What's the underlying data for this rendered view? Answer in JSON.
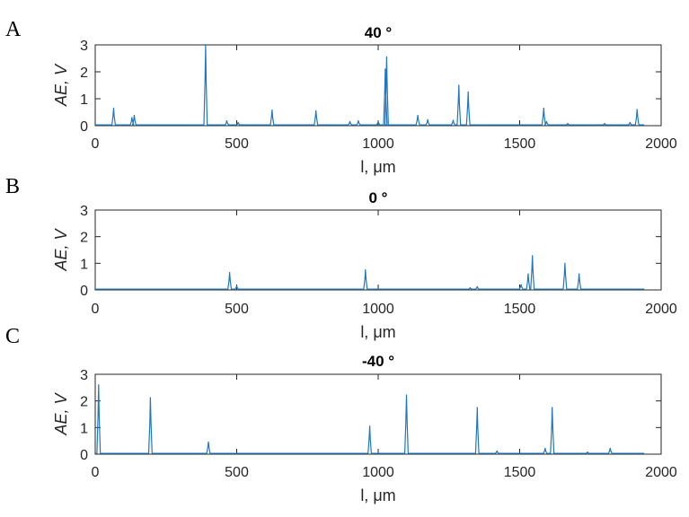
{
  "chart_data": [
    {
      "type": "line",
      "panel": "A",
      "title": "40 °",
      "xlabel": "l, μm",
      "ylabel": "AE, V",
      "xlim": [
        0,
        2000
      ],
      "ylim": [
        0,
        3
      ],
      "xticks": [
        0,
        500,
        1000,
        1500,
        2000
      ],
      "yticks": [
        0,
        1,
        2,
        3
      ],
      "baseline": 0.03,
      "x_end": 1940,
      "color": "#1f77c0",
      "peaks": [
        {
          "x": 65,
          "y": 0.65
        },
        {
          "x": 130,
          "y": 0.3
        },
        {
          "x": 138,
          "y": 0.38
        },
        {
          "x": 390,
          "y": 2.98
        },
        {
          "x": 465,
          "y": 0.18
        },
        {
          "x": 505,
          "y": 0.12
        },
        {
          "x": 625,
          "y": 0.58
        },
        {
          "x": 780,
          "y": 0.55
        },
        {
          "x": 900,
          "y": 0.15
        },
        {
          "x": 930,
          "y": 0.18
        },
        {
          "x": 1000,
          "y": 0.15
        },
        {
          "x": 1025,
          "y": 2.1
        },
        {
          "x": 1030,
          "y": 2.55
        },
        {
          "x": 1140,
          "y": 0.38
        },
        {
          "x": 1175,
          "y": 0.22
        },
        {
          "x": 1265,
          "y": 0.2
        },
        {
          "x": 1285,
          "y": 1.5
        },
        {
          "x": 1318,
          "y": 1.25
        },
        {
          "x": 1585,
          "y": 0.65
        },
        {
          "x": 1595,
          "y": 0.15
        },
        {
          "x": 1670,
          "y": 0.08
        },
        {
          "x": 1800,
          "y": 0.08
        },
        {
          "x": 1890,
          "y": 0.12
        },
        {
          "x": 1915,
          "y": 0.6
        }
      ]
    },
    {
      "type": "line",
      "panel": "B",
      "title": "0 °",
      "xlabel": "l, μm",
      "ylabel": "AE, V",
      "xlim": [
        0,
        2000
      ],
      "ylim": [
        0,
        3
      ],
      "xticks": [
        0,
        500,
        1000,
        1500,
        2000
      ],
      "yticks": [
        0,
        1,
        2,
        3
      ],
      "baseline": 0.03,
      "x_end": 1940,
      "color": "#1f77c0",
      "peaks": [
        {
          "x": 475,
          "y": 0.65
        },
        {
          "x": 500,
          "y": 0.15
        },
        {
          "x": 955,
          "y": 0.75
        },
        {
          "x": 1325,
          "y": 0.08
        },
        {
          "x": 1350,
          "y": 0.12
        },
        {
          "x": 1505,
          "y": 0.2
        },
        {
          "x": 1530,
          "y": 0.6
        },
        {
          "x": 1545,
          "y": 1.28
        },
        {
          "x": 1660,
          "y": 1.0
        },
        {
          "x": 1710,
          "y": 0.6
        }
      ]
    },
    {
      "type": "line",
      "panel": "C",
      "title": "-40 °",
      "xlabel": "l, μm",
      "ylabel": "AE, V",
      "xlim": [
        0,
        2000
      ],
      "ylim": [
        0,
        3
      ],
      "xticks": [
        0,
        500,
        1000,
        1500,
        2000
      ],
      "yticks": [
        0,
        1,
        2,
        3
      ],
      "baseline": 0.03,
      "x_end": 1940,
      "color": "#1f77c0",
      "peaks": [
        {
          "x": 12,
          "y": 2.6
        },
        {
          "x": 195,
          "y": 2.12
        },
        {
          "x": 400,
          "y": 0.45
        },
        {
          "x": 970,
          "y": 1.05
        },
        {
          "x": 1100,
          "y": 2.22
        },
        {
          "x": 1350,
          "y": 1.75
        },
        {
          "x": 1420,
          "y": 0.12
        },
        {
          "x": 1590,
          "y": 0.22
        },
        {
          "x": 1615,
          "y": 1.75
        },
        {
          "x": 1740,
          "y": 0.08
        },
        {
          "x": 1820,
          "y": 0.22
        }
      ]
    }
  ]
}
